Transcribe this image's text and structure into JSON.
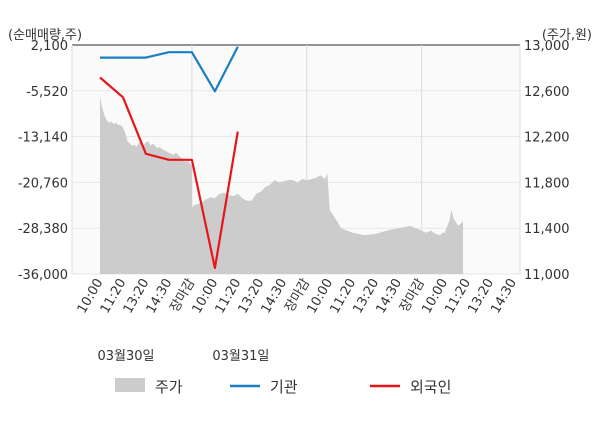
{
  "chart_data": {
    "type": "line",
    "units": {
      "left": "(순매매량,주)",
      "right": "(주가,원)"
    },
    "y_left": {
      "ticks": [
        "2,100",
        "-5,520",
        "-13,140",
        "-20,760",
        "-28,380",
        "-36,000"
      ],
      "range": [
        -36000,
        2100
      ]
    },
    "y_right": {
      "ticks": [
        "13,000",
        "12,600",
        "12,200",
        "11,800",
        "11,400",
        "11,000"
      ],
      "range": [
        11000,
        13000
      ]
    },
    "x_ticks": [
      {
        "label": "10:00",
        "red": false
      },
      {
        "label": "11:20",
        "red": false
      },
      {
        "label": "13:20",
        "red": false
      },
      {
        "label": "14:30",
        "red": false
      },
      {
        "label": "장마감",
        "red": true
      },
      {
        "label": "10:00",
        "red": false
      },
      {
        "label": "11:20",
        "red": false
      },
      {
        "label": "13:20",
        "red": false
      },
      {
        "label": "14:30",
        "red": false
      },
      {
        "label": "장마감",
        "red": true
      },
      {
        "label": "10:00",
        "red": false
      },
      {
        "label": "11:20",
        "red": false
      },
      {
        "label": "13:20",
        "red": false
      },
      {
        "label": "14:30",
        "red": false
      },
      {
        "label": "장마감",
        "red": true
      },
      {
        "label": "10:00",
        "red": false
      },
      {
        "label": "11:20",
        "red": false
      },
      {
        "label": "13:20",
        "red": false
      },
      {
        "label": "14:30",
        "red": false
      }
    ],
    "dates": [
      "03월30일",
      "03월31일"
    ],
    "series": [
      {
        "name": "주가",
        "kind": "area",
        "axis": "right",
        "color": "#cccccc",
        "x": [
          0,
          0.05,
          0.1,
          0.2,
          0.3,
          0.4,
          0.5,
          0.6,
          0.7,
          0.8,
          0.9,
          1.0,
          1.1,
          1.2,
          1.3,
          1.4,
          1.5,
          1.6,
          1.7,
          1.8,
          1.9,
          2.0,
          2.1,
          2.2,
          2.3,
          2.4,
          2.5,
          2.6,
          2.7,
          2.8,
          2.9,
          3.0,
          3.1,
          3.2,
          3.3,
          3.4,
          3.5,
          3.6,
          3.7,
          3.8,
          3.9,
          4.0,
          4.0,
          4.1,
          4.2,
          4.4,
          4.6,
          4.8,
          5.0,
          5.2,
          5.4,
          5.6,
          5.8,
          6.0,
          6.2,
          6.4,
          6.6,
          6.8,
          7.0,
          7.2,
          7.4,
          7.6,
          7.8,
          8.0,
          8.2,
          8.4,
          8.6,
          8.8,
          9.0,
          9.2,
          9.4,
          9.6,
          9.8,
          9.9,
          9.9,
          10.0,
          10.2,
          10.5,
          11.0,
          11.5,
          12.0,
          12.5,
          13.0,
          13.5,
          14.0,
          14.2,
          14.4,
          14.6,
          14.8,
          14.9,
          15.0,
          15.2,
          15.3,
          15.4,
          15.6,
          15.8
        ],
        "values": [
          12550,
          12500,
          12450,
          12380,
          12340,
          12320,
          12330,
          12310,
          12320,
          12300,
          12300,
          12280,
          12230,
          12160,
          12140,
          12120,
          12130,
          12110,
          12150,
          12160,
          12120,
          12150,
          12160,
          12120,
          12140,
          12120,
          12100,
          12110,
          12090,
          12080,
          12070,
          12060,
          12050,
          12040,
          12060,
          12040,
          12020,
          12010,
          11980,
          11990,
          11970,
          11950,
          11580,
          11600,
          11610,
          11620,
          11650,
          11670,
          11660,
          11700,
          11710,
          11690,
          11680,
          11700,
          11660,
          11640,
          11640,
          11700,
          11720,
          11760,
          11780,
          11820,
          11800,
          11810,
          11820,
          11820,
          11800,
          11830,
          11820,
          11830,
          11840,
          11860,
          11830,
          11880,
          11880,
          11560,
          11500,
          11400,
          11360,
          11340,
          11350,
          11380,
          11400,
          11420,
          11380,
          11360,
          11380,
          11350,
          11340,
          11360,
          11360,
          11460,
          11560,
          11480,
          11420,
          11460
        ]
      },
      {
        "name": "기관",
        "kind": "line",
        "axis": "left",
        "color": "#1a7fc1",
        "x": [
          0,
          1,
          2,
          3,
          4,
          5,
          6
        ],
        "values": [
          0,
          0,
          0,
          900,
          900,
          -5600,
          1800
        ]
      },
      {
        "name": "외국인",
        "kind": "line",
        "axis": "left",
        "color": "#e8141c",
        "x": [
          0,
          1,
          2,
          3,
          4,
          5,
          6
        ],
        "values": [
          -3300,
          -6600,
          -16000,
          -17000,
          -17000,
          -35000,
          -12300
        ]
      }
    ],
    "legend": [
      "주가",
      "기관",
      "외국인"
    ],
    "legend_position": "bottom",
    "close_label_color": "#e8141c"
  }
}
